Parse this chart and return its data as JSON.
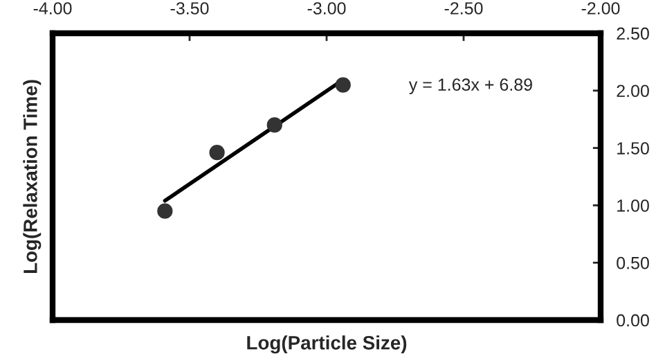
{
  "chart_data": {
    "type": "scatter",
    "xlabel": "Log(Particle Size)",
    "ylabel": "Log(Relaxation Time)",
    "xlim": [
      -4.0,
      -2.0
    ],
    "xticks": [
      {
        "value": -4.0,
        "label": "-4.00"
      },
      {
        "value": -3.5,
        "label": "-3.50"
      },
      {
        "value": -3.0,
        "label": "-3.00"
      },
      {
        "value": -2.5,
        "label": "-2.50"
      },
      {
        "value": -2.0,
        "label": "-2.00"
      }
    ],
    "ylim": [
      0.0,
      2.5
    ],
    "yticks": [
      {
        "value": 0.0,
        "label": "0.00"
      },
      {
        "value": 0.5,
        "label": "0.50"
      },
      {
        "value": 1.0,
        "label": "1.00"
      },
      {
        "value": 1.5,
        "label": "1.50"
      },
      {
        "value": 2.0,
        "label": "2.00"
      },
      {
        "value": 2.5,
        "label": "2.50"
      }
    ],
    "series": [
      {
        "color": "#333333",
        "marker": "circle",
        "x": [
          -3.59,
          -3.4,
          -3.19,
          -2.94
        ],
        "values": [
          0.95,
          1.46,
          1.7,
          2.05
        ]
      },
      {
        "type": "line",
        "color": "#000000",
        "line_style": "solid",
        "x": [
          -3.59,
          -2.955
        ],
        "values": [
          1.04,
          2.07
        ]
      }
    ],
    "annotations": [
      "y = 1.63x + 6.89"
    ],
    "grid": false,
    "legend": false
  }
}
